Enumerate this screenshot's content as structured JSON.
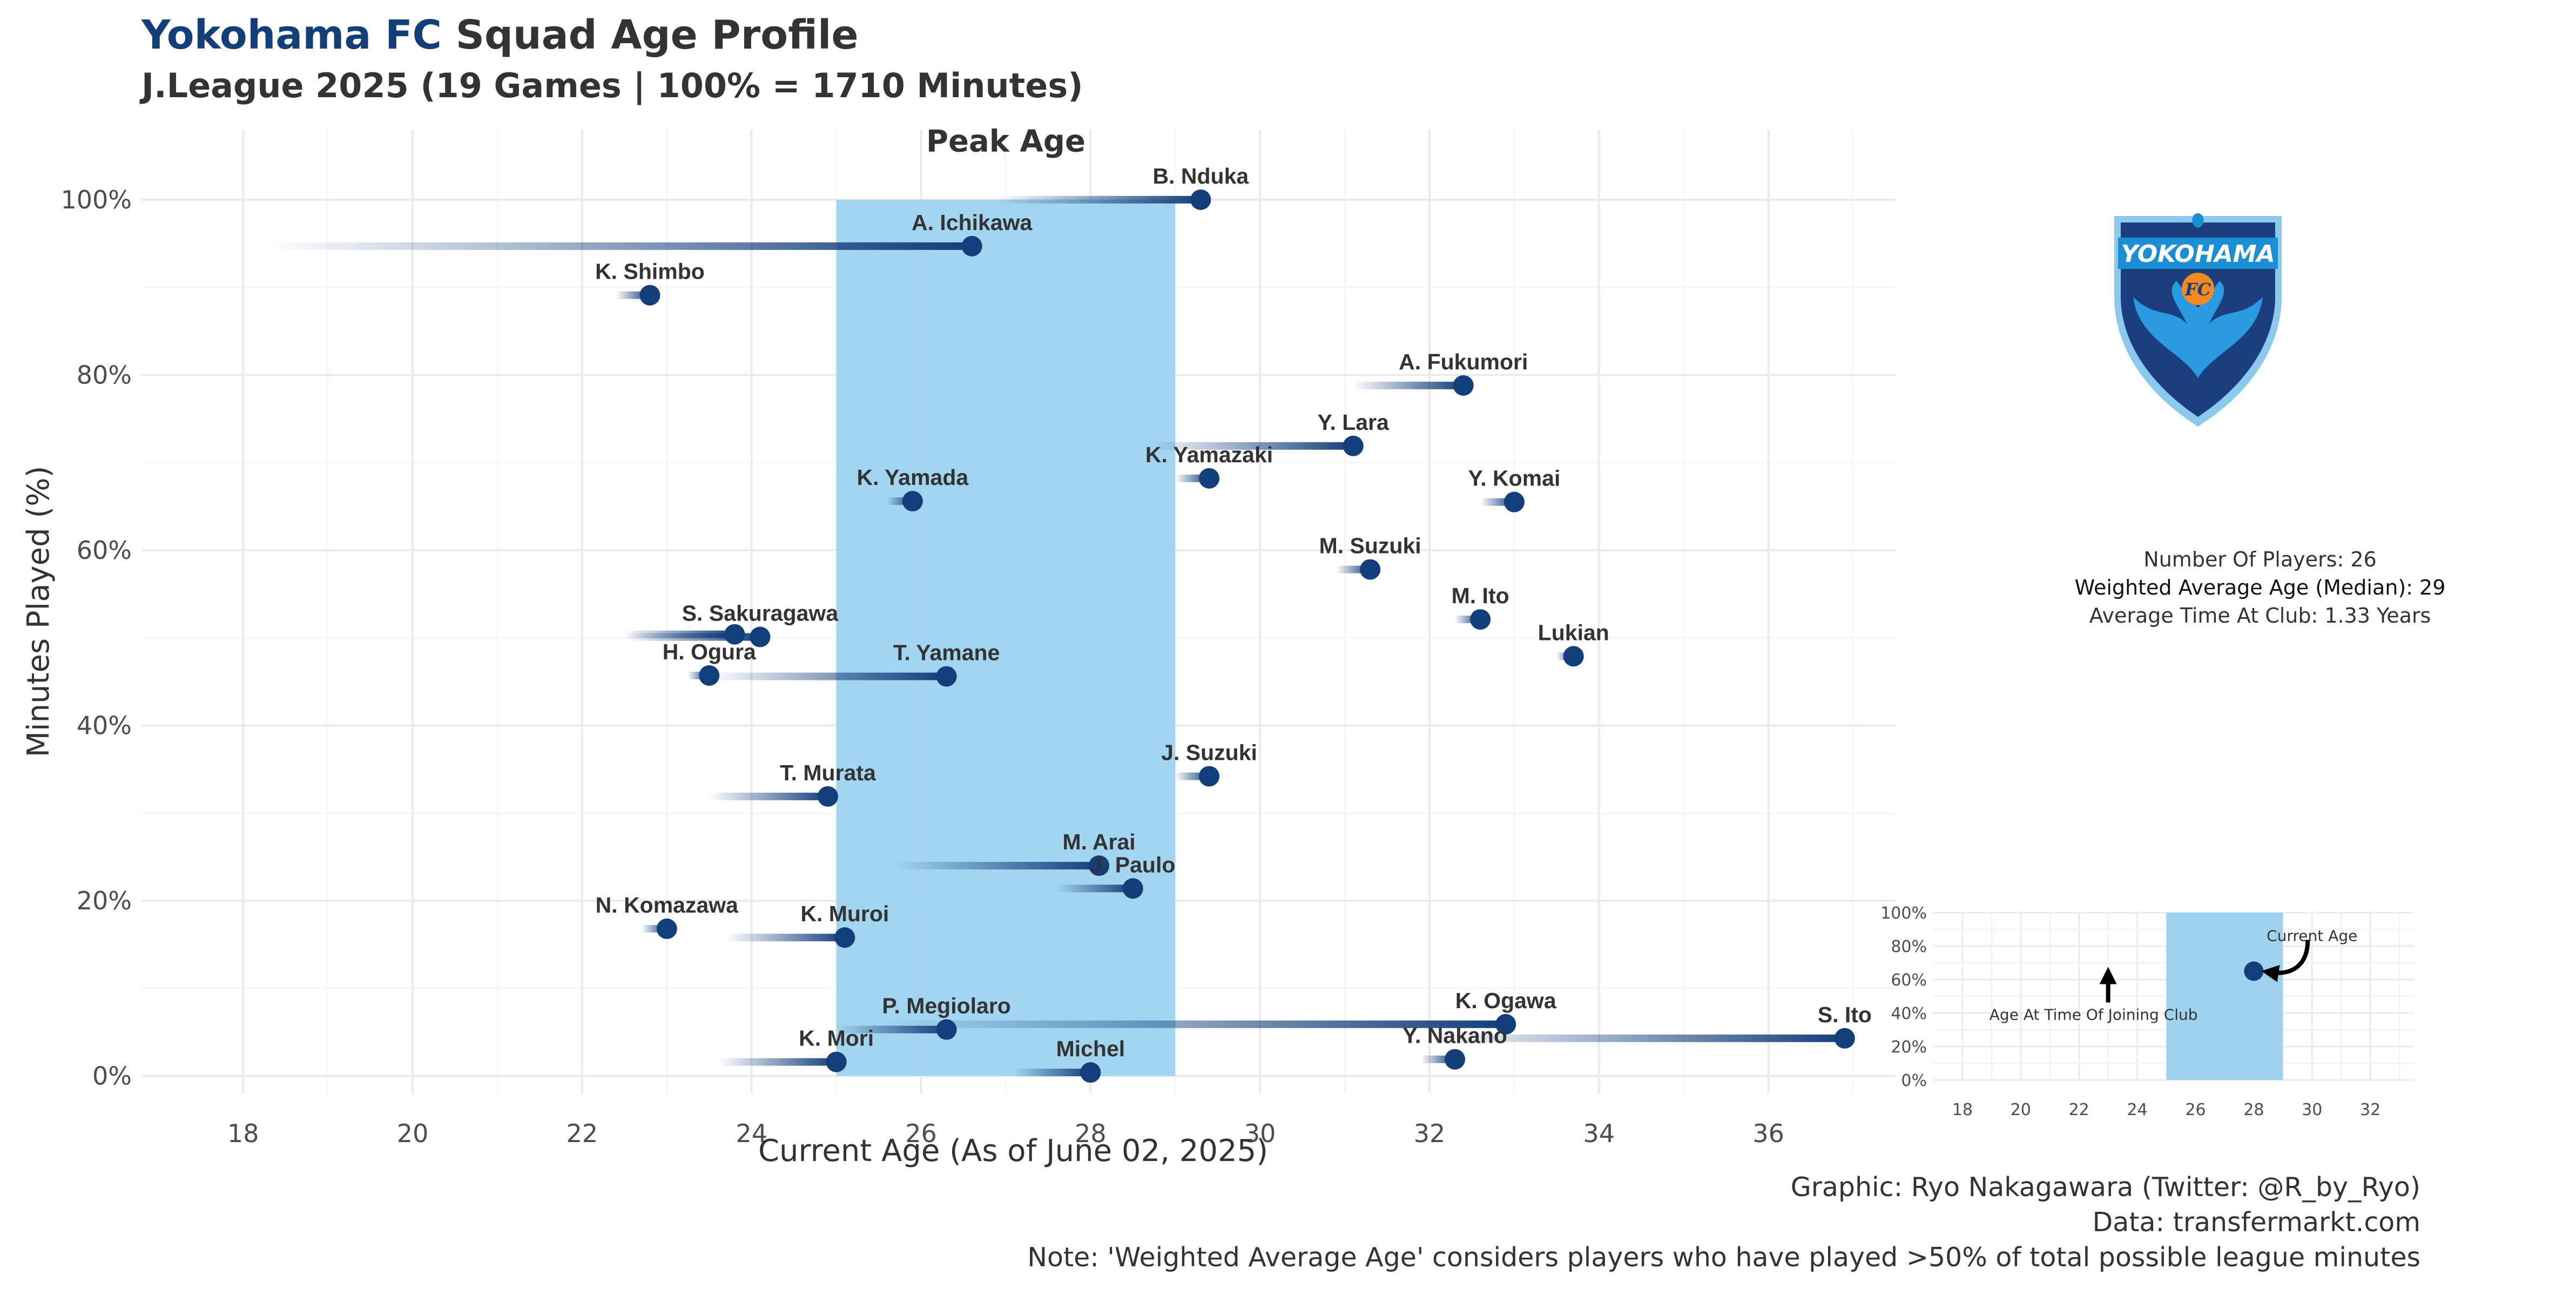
{
  "header": {
    "club": "Yokohama FC",
    "title_rest": "Squad Age Profile",
    "subtitle": "J.League 2025 (19 Games | 100% = 1710 Minutes)"
  },
  "chart_data": {
    "type": "scatter",
    "title": "Yokohama FC  Squad Age Profile",
    "subtitle": "J.League 2025 (19 Games | 100% = 1710 Minutes)",
    "xlabel": "Current Age (As of June 02, 2025)",
    "ylabel": "Minutes Played (%)",
    "xlim": [
      16.8,
      37.5
    ],
    "ylim": [
      -2,
      108
    ],
    "x_ticks": [
      18,
      20,
      22,
      24,
      26,
      28,
      30,
      32,
      34,
      36
    ],
    "y_ticks": [
      0,
      20,
      40,
      60,
      80,
      100
    ],
    "y_tick_labels": [
      "0%",
      "20%",
      "40%",
      "60%",
      "80%",
      "100%"
    ],
    "grid": true,
    "peak_age": {
      "label": "Peak Age",
      "from": 25,
      "to": 29
    },
    "series": [
      {
        "name": "B. Nduka",
        "joined_age": 26.9,
        "age": 29.3,
        "minutes_pct": 100
      },
      {
        "name": "A. Ichikawa",
        "joined_age": 18.3,
        "age": 26.6,
        "minutes_pct": 94.7
      },
      {
        "name": "K. Shimbo",
        "joined_age": 22.4,
        "age": 22.8,
        "minutes_pct": 89.1
      },
      {
        "name": "A. Fukumori",
        "joined_age": 31.1,
        "age": 32.4,
        "minutes_pct": 78.8
      },
      {
        "name": "Y. Lara",
        "joined_age": 28.7,
        "age": 31.1,
        "minutes_pct": 71.9
      },
      {
        "name": "K. Yamazaki",
        "joined_age": 29.0,
        "age": 29.4,
        "minutes_pct": 68.2
      },
      {
        "name": "K. Yamada",
        "joined_age": 25.6,
        "age": 25.9,
        "minutes_pct": 65.6
      },
      {
        "name": "Y. Komai",
        "joined_age": 32.6,
        "age": 33.0,
        "minutes_pct": 65.5
      },
      {
        "name": "M. Suzuki",
        "joined_age": 30.9,
        "age": 31.3,
        "minutes_pct": 57.8
      },
      {
        "name": "M. Ito",
        "joined_age": 32.3,
        "age": 32.6,
        "minutes_pct": 52.1
      },
      {
        "name": "S. Sakuragawa",
        "joined_age": 22.5,
        "age": 24.1,
        "minutes_pct": 50.1
      },
      {
        "name": "S. Sakuragawa 2",
        "joined_age": 22.5,
        "age": 23.8,
        "minutes_pct": 50.4,
        "hide_label": true
      },
      {
        "name": "Lukian",
        "joined_age": 33.5,
        "age": 33.7,
        "minutes_pct": 47.9
      },
      {
        "name": "H. Ogura",
        "joined_age": 23.5,
        "age": 23.5,
        "minutes_pct": 45.7
      },
      {
        "name": "T. Yamane",
        "joined_age": 23.5,
        "age": 26.3,
        "minutes_pct": 45.6
      },
      {
        "name": "J. Suzuki",
        "joined_age": 29.0,
        "age": 29.4,
        "minutes_pct": 34.2
      },
      {
        "name": "T. Murata",
        "joined_age": 23.5,
        "age": 24.9,
        "minutes_pct": 31.9
      },
      {
        "name": "M. Arai",
        "joined_age": 25.7,
        "age": 28.1,
        "minutes_pct": 24.0
      },
      {
        "name": "J. Paulo",
        "joined_age": 27.6,
        "age": 28.5,
        "minutes_pct": 21.4
      },
      {
        "name": "N. Komazawa",
        "joined_age": 22.7,
        "age": 23.0,
        "minutes_pct": 16.8
      },
      {
        "name": "K. Muroi",
        "joined_age": 23.7,
        "age": 25.1,
        "minutes_pct": 15.8
      },
      {
        "name": "P. Megiolaro",
        "joined_age": 25.0,
        "age": 26.3,
        "minutes_pct": 5.3
      },
      {
        "name": "K. Ogawa",
        "joined_age": 25.5,
        "age": 32.9,
        "minutes_pct": 5.9
      },
      {
        "name": "S. Ito",
        "joined_age": 32.0,
        "age": 36.9,
        "minutes_pct": 4.3
      },
      {
        "name": "K. Mori",
        "joined_age": 23.6,
        "age": 25.0,
        "minutes_pct": 1.6
      },
      {
        "name": "Michel",
        "joined_age": 27.1,
        "age": 28.0,
        "minutes_pct": 0.4
      },
      {
        "name": "Y. Nakano",
        "joined_age": 31.9,
        "age": 32.3,
        "minutes_pct": 1.9
      }
    ],
    "legend_inset": {
      "x_ticks": [
        18,
        20,
        22,
        24,
        26,
        28,
        30,
        32
      ],
      "y_tick_labels": [
        "0%",
        "20%",
        "40%",
        "60%",
        "80%",
        "100%"
      ],
      "peak_from": 25,
      "peak_to": 29,
      "example_joined_age": 23,
      "example_age": 28,
      "example_minutes_pct": 65,
      "label_current": "Current Age",
      "label_joined": "Age At Time Of Joining Club"
    }
  },
  "stats": {
    "players": "Number Of Players: 26",
    "weighted": "Weighted Average Age (Median): 29",
    "time_at_club": "Average Time At Club: 1.33 Years"
  },
  "logo": {
    "top_text": "YOKOHAMA",
    "badge_text": "FC"
  },
  "caption": {
    "graphic": "Graphic: Ryo Nakagawara (Twitter: @R_by_Ryo)",
    "data": "Data: transfermarkt.com",
    "note": "Note: 'Weighted Average Age' considers players who have played >50% of total possible league minutes"
  },
  "colors": {
    "point": "#123e7a",
    "peak_band": "#9dd3ee",
    "grid": "#ebebeb",
    "text": "#333333",
    "club": "#123e7a",
    "logo_blue": "#1b8fd6",
    "logo_dark": "#1a3f7c",
    "logo_orange": "#f28a1f"
  }
}
